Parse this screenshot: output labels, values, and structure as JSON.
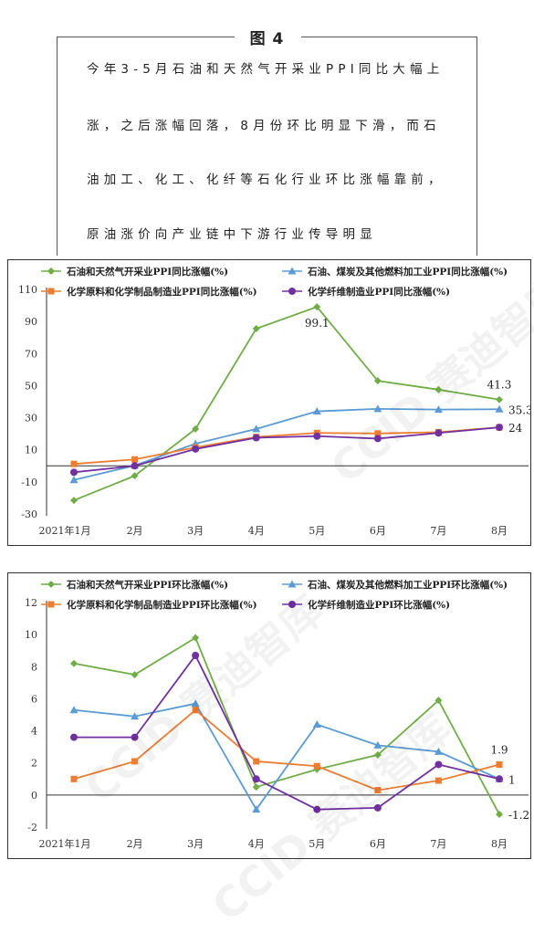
{
  "figure": {
    "title": "图 4",
    "paragraph_lines": [
      "今年3-5月石油和天然气开采业PPI同比大幅上",
      "涨，之后涨幅回落，8月份环比明显下滑，而石",
      "油加工、化工、化纤等石化行业环比涨幅靠前，",
      "原油涨价向产业链中下游行业传导明显"
    ]
  },
  "watermark": {
    "text": "CCID 赛迪智库"
  },
  "chart_data": [
    {
      "type": "line",
      "categories": [
        "2021年1月",
        "2月",
        "3月",
        "4月",
        "5月",
        "6月",
        "7月",
        "8月"
      ],
      "ylim": [
        -30,
        110
      ],
      "yticks": [
        -30,
        -10,
        10,
        30,
        50,
        70,
        90,
        110
      ],
      "legend_placement": "top",
      "series": [
        {
          "name": "石油和天然气开采业PPI同比涨幅(%)",
          "color": "#70ad47",
          "marker": "diamond",
          "values": [
            -21.5,
            -6.2,
            23.0,
            85.5,
            99.1,
            53.0,
            47.5,
            41.3
          ]
        },
        {
          "name": "石油、煤炭及其他燃料加工业PPI同比涨幅(%)",
          "color": "#5b9bd5",
          "marker": "triangle",
          "values": [
            -8.8,
            0.2,
            13.8,
            23.0,
            34.0,
            35.5,
            35.1,
            35.3
          ]
        },
        {
          "name": "化学原料和化学制品制造业PPI同比涨幅(%)",
          "color": "#ed7d31",
          "marker": "square",
          "values": [
            1.2,
            4.0,
            11.5,
            18.0,
            20.5,
            20.2,
            21.0,
            24.0
          ]
        },
        {
          "name": "化学纤维制造业PPI同比涨幅(%)",
          "color": "#7030a0",
          "marker": "circle",
          "values": [
            -4.0,
            0.0,
            10.5,
            17.5,
            18.5,
            17.0,
            20.5,
            24.0
          ]
        }
      ],
      "data_labels": [
        {
          "series": 0,
          "index": 4,
          "text": "99.1",
          "pos": "below"
        },
        {
          "series": 0,
          "index": 7,
          "text": "41.3",
          "pos": "above"
        },
        {
          "series": 1,
          "index": 7,
          "text": "35.3",
          "pos": "right"
        },
        {
          "series": 3,
          "index": 7,
          "text": "24",
          "pos": "right"
        }
      ]
    },
    {
      "type": "line",
      "categories": [
        "2021年1月",
        "2月",
        "3月",
        "4月",
        "5月",
        "6月",
        "7月",
        "8月"
      ],
      "ylim": [
        -2,
        12
      ],
      "yticks": [
        -2,
        0,
        2,
        4,
        6,
        8,
        10,
        12
      ],
      "legend_placement": "top",
      "series": [
        {
          "name": "石油和天然气开采业PPI环比涨幅(%)",
          "color": "#70ad47",
          "marker": "diamond",
          "values": [
            8.2,
            7.5,
            9.8,
            0.5,
            1.6,
            2.5,
            5.9,
            -1.2
          ]
        },
        {
          "name": "石油、煤炭及其他燃料加工业PPI环比涨幅(%)",
          "color": "#5b9bd5",
          "marker": "triangle",
          "values": [
            5.3,
            4.9,
            5.7,
            -0.9,
            4.4,
            3.1,
            2.7,
            1.0
          ]
        },
        {
          "name": "化学原料和化学制品制造业PPI环比涨幅(%)",
          "color": "#ed7d31",
          "marker": "square",
          "values": [
            1.0,
            2.1,
            5.3,
            2.1,
            1.8,
            0.3,
            0.9,
            1.9
          ]
        },
        {
          "name": "化学纤维制造业PPI环比涨幅(%)",
          "color": "#7030a0",
          "marker": "circle",
          "values": [
            3.6,
            3.6,
            8.7,
            1.0,
            -0.9,
            -0.8,
            1.9,
            1.0
          ]
        }
      ],
      "data_labels": [
        {
          "series": 2,
          "index": 7,
          "text": "1.9",
          "pos": "above"
        },
        {
          "series": 0,
          "index": 7,
          "text": "-1.2",
          "pos": "right"
        },
        {
          "series": 3,
          "index": 7,
          "text": "1",
          "pos": "right"
        }
      ]
    }
  ]
}
